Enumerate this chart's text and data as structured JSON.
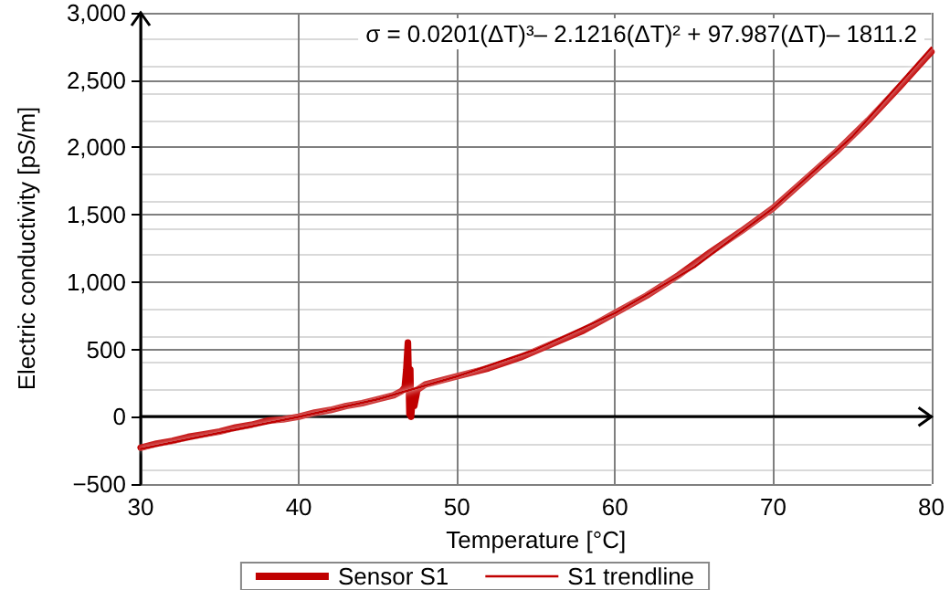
{
  "chart_data": {
    "type": "line",
    "xlabel": "Temperature [°C]",
    "ylabel": "Electric conductivity [pS/m]",
    "annotations": [
      "σ = 0.0201(ΔT)³– 2.1216(ΔT)² + 97.987(ΔT)– 1811.2"
    ],
    "xlim": [
      30,
      80
    ],
    "xticks": [
      30,
      40,
      50,
      60,
      70,
      80
    ],
    "ylim": [
      -500,
      3000
    ],
    "yticks": [
      {
        "value": -500,
        "label": "−500"
      },
      0,
      500,
      {
        "value": 1000,
        "label": "1,000"
      },
      {
        "value": 1500,
        "label": "1,500"
      },
      {
        "value": 2000,
        "label": "2,000"
      },
      {
        "value": 2500,
        "label": "2,500"
      },
      {
        "value": 3000,
        "label": "3,000"
      }
    ],
    "grid": true,
    "legend": "bottom",
    "marker": "none",
    "series": [
      {
        "name": "Sensor S1",
        "color": "#c00000",
        "x": [
          30,
          31,
          32,
          33,
          34,
          35,
          36,
          37,
          38,
          39,
          40,
          41,
          42,
          43,
          44,
          45,
          46,
          46.5,
          46.7,
          46.8,
          46.9,
          47,
          47.05,
          47.1,
          47.2,
          47.3,
          47.5,
          48,
          49,
          50,
          52,
          54,
          56,
          58,
          60,
          62,
          64,
          66,
          68,
          70,
          72,
          74,
          76,
          78,
          80
        ],
        "values": [
          -230,
          -200,
          -180,
          -150,
          -130,
          -110,
          -80,
          -60,
          -30,
          -20,
          0,
          30,
          50,
          80,
          100,
          130,
          160,
          190,
          220,
          350,
          550,
          20,
          350,
          0,
          150,
          80,
          200,
          240,
          270,
          300,
          360,
          440,
          540,
          640,
          770,
          900,
          1050,
          1220,
          1380,
          1550,
          1760,
          1970,
          2200,
          2450,
          2710
        ]
      },
      {
        "name": "S1 trendline",
        "color": "#c00000",
        "x": [
          30,
          35,
          40,
          45,
          50,
          55,
          60,
          65,
          70,
          75,
          80
        ],
        "values": [
          -240,
          -120,
          0,
          130,
          300,
          500,
          770,
          1110,
          1550,
          2080,
          2740
        ]
      }
    ]
  }
}
